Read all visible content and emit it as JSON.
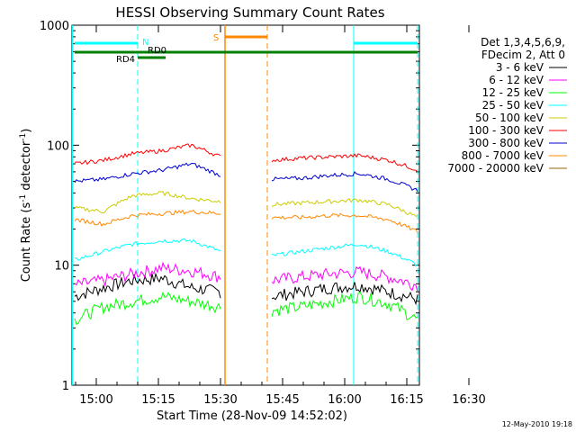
{
  "chart_data": {
    "type": "line",
    "title": "HESSI Observing Summary Count Rates",
    "xlabel": "Start Time (28-Nov-09 14:52:02)",
    "ylabel_main": "Count Rate (s",
    "ylabel_sup1": "-1",
    "ylabel_mid": " detector",
    "ylabel_sup2": "-1",
    "ylabel_end": ")",
    "timestamp": "12-May-2010 19:18",
    "y_scale": "log",
    "ylim": [
      1,
      1000
    ],
    "x_ticks": [
      "15:00",
      "15:15",
      "15:30",
      "15:45",
      "16:00",
      "16:15",
      "16:30"
    ],
    "y_ticks": [
      "1",
      "10",
      "100",
      "1000"
    ],
    "legend_header": [
      "Det 1,3,4,5,6,9,",
      "FDecim 2, Att 0"
    ],
    "series": [
      {
        "name": "3 - 6 keV",
        "color": "#000000",
        "values": [
          5.5,
          6.5,
          7.5,
          7.8,
          6.5,
          6.0,
          5.5,
          6.0,
          6.5,
          6.8,
          6.0,
          5.2
        ]
      },
      {
        "name": "6 - 12 keV",
        "color": "#ff00ff",
        "values": [
          6.8,
          7.5,
          8.5,
          9.5,
          9.0,
          8.0,
          7.5,
          8.0,
          8.5,
          8.8,
          8.0,
          6.8
        ]
      },
      {
        "name": "12 - 25 keV",
        "color": "#00ff00",
        "values": [
          3.5,
          4.5,
          5.0,
          5.5,
          5.0,
          4.5,
          4.2,
          4.5,
          5.0,
          5.5,
          4.8,
          3.5
        ]
      },
      {
        "name": "25 - 50 keV",
        "color": "#00ffff",
        "values": [
          11,
          13,
          15,
          16,
          16,
          13,
          12,
          13,
          14,
          15,
          13,
          10
        ]
      },
      {
        "name": "50 - 100 keV",
        "color": "#cccc00",
        "values": [
          30,
          28,
          38,
          40,
          36,
          34,
          32,
          33,
          34,
          35,
          32,
          25
        ]
      },
      {
        "name": "100 - 300 keV",
        "color": "#ff0000",
        "values": [
          70,
          75,
          85,
          90,
          100,
          80,
          75,
          78,
          80,
          82,
          75,
          62
        ]
      },
      {
        "name": "300 - 800 keV",
        "color": "#0000cc",
        "values": [
          50,
          52,
          58,
          62,
          70,
          56,
          52,
          53,
          56,
          58,
          52,
          42
        ]
      },
      {
        "name": "800 - 7000 keV",
        "color": "#ff8800",
        "values": [
          24,
          22,
          26,
          27,
          28,
          27,
          25,
          25,
          26,
          26,
          24,
          19
        ]
      },
      {
        "name": "7000 - 20000 keV",
        "color": "#996600",
        "values": []
      }
    ],
    "annotations": {
      "N": "N",
      "RD0": "RD0",
      "RD4": "RD4",
      "S": "S"
    },
    "colors": {
      "axis": "#000000",
      "night_bar": "#00ffff",
      "saa_bar": "#ff8800",
      "decim_bar": "#008000"
    }
  }
}
